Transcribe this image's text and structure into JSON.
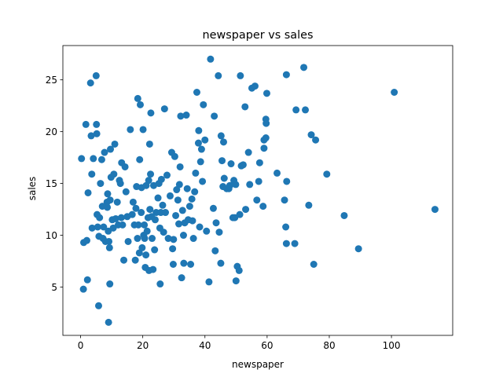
{
  "chart_data": {
    "type": "scatter",
    "title": "newspaper vs sales",
    "xlabel": "newspaper",
    "ylabel": "sales",
    "xlim": [
      -5.7,
      119.7
    ],
    "ylim": [
      0.34,
      28.31
    ],
    "xticks": [
      0,
      20,
      40,
      60,
      80,
      100
    ],
    "yticks": [
      5,
      10,
      15,
      20,
      25
    ],
    "grid": false,
    "color": "#1f77b4",
    "points": [
      [
        0.3,
        17.4
      ],
      [
        1.0,
        9.3
      ],
      [
        0.9,
        4.8
      ],
      [
        1.7,
        20.7
      ],
      [
        2.0,
        9.5
      ],
      [
        2.2,
        5.7
      ],
      [
        2.4,
        14.1
      ],
      [
        3.2,
        24.7
      ],
      [
        3.4,
        19.6
      ],
      [
        3.6,
        15.9
      ],
      [
        3.7,
        10.7
      ],
      [
        4.1,
        17.4
      ],
      [
        5.0,
        25.4
      ],
      [
        5.1,
        20.7
      ],
      [
        5.2,
        19.8
      ],
      [
        5.3,
        12.0
      ],
      [
        5.5,
        10.8
      ],
      [
        5.8,
        3.2
      ],
      [
        5.9,
        9.9
      ],
      [
        6.1,
        11.7
      ],
      [
        6.4,
        15.0
      ],
      [
        6.8,
        17.3
      ],
      [
        7.0,
        12.8
      ],
      [
        7.2,
        9.7
      ],
      [
        7.4,
        10.8
      ],
      [
        7.7,
        18.0
      ],
      [
        8.0,
        9.4
      ],
      [
        8.5,
        13.2
      ],
      [
        8.6,
        12.7
      ],
      [
        8.7,
        14.0
      ],
      [
        8.9,
        10.4
      ],
      [
        9.0,
        1.6
      ],
      [
        9.1,
        9.4
      ],
      [
        9.3,
        8.8
      ],
      [
        9.5,
        13.4
      ],
      [
        9.4,
        5.3
      ],
      [
        9.6,
        18.3
      ],
      [
        9.8,
        15.6
      ],
      [
        10.2,
        11.5
      ],
      [
        10.5,
        10.7
      ],
      [
        10.7,
        15.9
      ],
      [
        11.0,
        18.8
      ],
      [
        11.3,
        11.6
      ],
      [
        11.8,
        13.2
      ],
      [
        12.1,
        11.0
      ],
      [
        12.5,
        15.3
      ],
      [
        12.8,
        15.0
      ],
      [
        13.1,
        11.7
      ],
      [
        13.2,
        17.0
      ],
      [
        13.5,
        11.0
      ],
      [
        13.9,
        7.6
      ],
      [
        14.3,
        16.6
      ],
      [
        14.6,
        14.2
      ],
      [
        15.0,
        11.8
      ],
      [
        15.3,
        9.4
      ],
      [
        16.0,
        20.2
      ],
      [
        16.6,
        12.0
      ],
      [
        16.9,
        13.2
      ],
      [
        17.3,
        11.0
      ],
      [
        17.6,
        7.6
      ],
      [
        17.8,
        12.6
      ],
      [
        18.0,
        14.7
      ],
      [
        18.3,
        9.7
      ],
      [
        18.4,
        23.2
      ],
      [
        18.6,
        11.0
      ],
      [
        18.9,
        8.3
      ],
      [
        19.0,
        17.3
      ],
      [
        19.2,
        22.6
      ],
      [
        19.5,
        12.2
      ],
      [
        19.6,
        14.6
      ],
      [
        19.8,
        8.8
      ],
      [
        20.1,
        20.2
      ],
      [
        20.3,
        10.0
      ],
      [
        20.5,
        11.0
      ],
      [
        20.6,
        9.7
      ],
      [
        20.8,
        6.9
      ],
      [
        21.0,
        8.1
      ],
      [
        21.1,
        14.8
      ],
      [
        21.4,
        10.4
      ],
      [
        21.7,
        11.7
      ],
      [
        21.9,
        15.3
      ],
      [
        22.0,
        6.6
      ],
      [
        22.2,
        18.8
      ],
      [
        22.3,
        12.5
      ],
      [
        22.5,
        15.9
      ],
      [
        22.6,
        21.8
      ],
      [
        22.8,
        11.8
      ],
      [
        23.0,
        9.7
      ],
      [
        23.3,
        6.7
      ],
      [
        23.5,
        14.8
      ],
      [
        23.8,
        8.6
      ],
      [
        24.0,
        11.5
      ],
      [
        24.3,
        12.2
      ],
      [
        24.9,
        13.6
      ],
      [
        25.2,
        15.0
      ],
      [
        25.5,
        10.7
      ],
      [
        25.6,
        5.3
      ],
      [
        25.8,
        12.2
      ],
      [
        26.0,
        15.4
      ],
      [
        26.4,
        12.9
      ],
      [
        26.7,
        10.3
      ],
      [
        27.0,
        22.2
      ],
      [
        27.3,
        12.2
      ],
      [
        27.8,
        15.8
      ],
      [
        28.2,
        9.7
      ],
      [
        28.8,
        13.8
      ],
      [
        29.3,
        18.0
      ],
      [
        29.6,
        8.7
      ],
      [
        29.8,
        7.2
      ],
      [
        29.9,
        9.6
      ],
      [
        30.3,
        17.6
      ],
      [
        30.6,
        11.9
      ],
      [
        30.9,
        14.4
      ],
      [
        31.3,
        13.4
      ],
      [
        31.6,
        11.1
      ],
      [
        31.8,
        14.9
      ],
      [
        32.0,
        16.6
      ],
      [
        32.2,
        21.5
      ],
      [
        32.5,
        5.9
      ],
      [
        32.8,
        12.4
      ],
      [
        33.1,
        10.0
      ],
      [
        33.2,
        7.3
      ],
      [
        33.5,
        11.2
      ],
      [
        34.0,
        21.6
      ],
      [
        34.3,
        14.5
      ],
      [
        34.6,
        11.5
      ],
      [
        35.1,
        12.8
      ],
      [
        35.4,
        7.2
      ],
      [
        35.8,
        13.5
      ],
      [
        36.0,
        11.4
      ],
      [
        36.3,
        9.7
      ],
      [
        36.7,
        14.2
      ],
      [
        37.0,
        16.0
      ],
      [
        37.4,
        23.8
      ],
      [
        37.9,
        18.9
      ],
      [
        38.0,
        20.1
      ],
      [
        38.3,
        10.8
      ],
      [
        38.6,
        17.1
      ],
      [
        38.9,
        18.3
      ],
      [
        39.2,
        15.2
      ],
      [
        39.5,
        22.6
      ],
      [
        40.0,
        19.2
      ],
      [
        40.5,
        10.4
      ],
      [
        41.3,
        5.5
      ],
      [
        41.8,
        27.0
      ],
      [
        42.7,
        12.6
      ],
      [
        43.0,
        21.5
      ],
      [
        43.3,
        8.5
      ],
      [
        43.6,
        11.2
      ],
      [
        44.3,
        25.4
      ],
      [
        44.6,
        10.3
      ],
      [
        45.1,
        7.3
      ],
      [
        45.2,
        19.6
      ],
      [
        45.5,
        17.2
      ],
      [
        45.8,
        14.7
      ],
      [
        46.0,
        19.0
      ],
      [
        46.2,
        15.5
      ],
      [
        47.0,
        14.5
      ],
      [
        47.7,
        14.5
      ],
      [
        48.0,
        14.8
      ],
      [
        48.4,
        16.9
      ],
      [
        49.0,
        11.7
      ],
      [
        49.3,
        15.3
      ],
      [
        49.6,
        11.7
      ],
      [
        49.9,
        14.9
      ],
      [
        50.0,
        5.6
      ],
      [
        50.4,
        7.0
      ],
      [
        51.0,
        6.6
      ],
      [
        51.2,
        12.0
      ],
      [
        51.4,
        25.4
      ],
      [
        51.7,
        16.7
      ],
      [
        52.3,
        16.8
      ],
      [
        52.9,
        22.4
      ],
      [
        53.1,
        12.5
      ],
      [
        54.0,
        18.0
      ],
      [
        54.4,
        14.9
      ],
      [
        55.1,
        24.2
      ],
      [
        56.1,
        24.4
      ],
      [
        56.7,
        13.4
      ],
      [
        57.3,
        15.2
      ],
      [
        57.6,
        17.0
      ],
      [
        58.7,
        12.8
      ],
      [
        59.0,
        18.4
      ],
      [
        59.0,
        19.2
      ],
      [
        59.6,
        19.4
      ],
      [
        59.6,
        21.2
      ],
      [
        59.7,
        20.8
      ],
      [
        59.9,
        23.7
      ],
      [
        63.2,
        16.0
      ],
      [
        65.6,
        13.4
      ],
      [
        66.2,
        9.2
      ],
      [
        66.3,
        15.2
      ],
      [
        66.0,
        10.8
      ],
      [
        66.2,
        25.5
      ],
      [
        68.9,
        9.2
      ],
      [
        69.3,
        22.1
      ],
      [
        71.8,
        26.2
      ],
      [
        72.3,
        22.1
      ],
      [
        73.4,
        12.9
      ],
      [
        74.2,
        19.7
      ],
      [
        75.0,
        7.2
      ],
      [
        75.6,
        19.2
      ],
      [
        79.2,
        15.9
      ],
      [
        84.8,
        11.9
      ],
      [
        89.4,
        8.7
      ],
      [
        100.9,
        23.8
      ],
      [
        114.0,
        12.5
      ]
    ]
  }
}
